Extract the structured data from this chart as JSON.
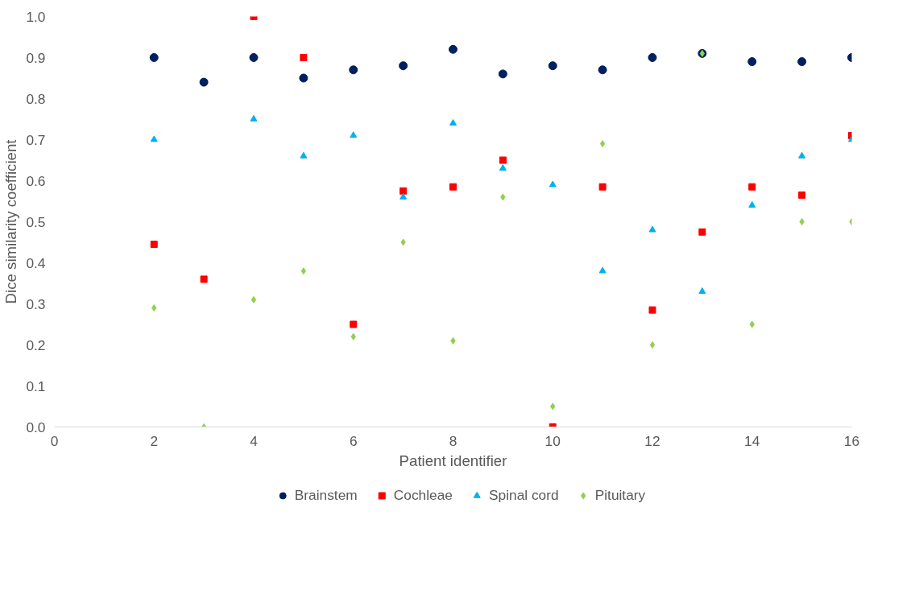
{
  "chart_data": {
    "type": "scatter",
    "xlabel": "Patient identifier",
    "ylabel": "Dice similarity coefficient",
    "xlim": [
      0,
      16
    ],
    "xticks": [
      0,
      2,
      4,
      6,
      8,
      10,
      12,
      14,
      16
    ],
    "ylim": [
      0,
      1
    ],
    "yticks": [
      {
        "value": 0,
        "label": "0.0"
      },
      {
        "value": 0.1,
        "label": "0.1"
      },
      {
        "value": 0.2,
        "label": "0.2"
      },
      {
        "value": 0.3,
        "label": "0.3"
      },
      {
        "value": 0.4,
        "label": "0.4"
      },
      {
        "value": 0.5,
        "label": "0.5"
      },
      {
        "value": 0.6,
        "label": "0.6"
      },
      {
        "value": 0.7,
        "label": "0.7"
      },
      {
        "value": 0.8,
        "label": "0.8"
      },
      {
        "value": 0.9,
        "label": "0.9"
      },
      {
        "value": 1,
        "label": "1.0"
      }
    ],
    "grid": false,
    "legend": "bottom",
    "series": [
      {
        "name": "Brainstem",
        "color": "#002060",
        "marker": "circle",
        "x": [
          2,
          3,
          4,
          5,
          6,
          7,
          8,
          9,
          10,
          11,
          12,
          13,
          14,
          15,
          16
        ],
        "values": [
          0.9,
          0.84,
          0.9,
          0.85,
          0.87,
          0.88,
          0.92,
          0.86,
          0.88,
          0.87,
          0.9,
          0.91,
          0.89,
          0.89,
          0.9
        ]
      },
      {
        "name": "Cochleae",
        "color": "#ff0000",
        "marker": "square",
        "x": [
          2,
          3,
          4,
          5,
          6,
          7,
          8,
          9,
          10,
          11,
          12,
          13,
          14,
          15,
          16
        ],
        "values": [
          0.445,
          0.36,
          1.0,
          0.9,
          0.25,
          0.575,
          0.585,
          0.65,
          0.0,
          0.585,
          0.285,
          0.475,
          0.585,
          0.565,
          0.71
        ]
      },
      {
        "name": "Spinal cord",
        "color": "#00b0f0",
        "marker": "triangle",
        "x": [
          2,
          4,
          5,
          6,
          7,
          8,
          9,
          10,
          11,
          12,
          13,
          14,
          15,
          16
        ],
        "values": [
          0.7,
          0.75,
          0.66,
          0.71,
          0.56,
          0.74,
          0.63,
          0.59,
          0.38,
          0.48,
          0.33,
          0.54,
          0.66,
          0.7
        ]
      },
      {
        "name": "Pituitary",
        "color": "#92d050",
        "marker": "diamond",
        "x": [
          2,
          3,
          4,
          5,
          6,
          7,
          8,
          9,
          10,
          11,
          12,
          13,
          14,
          15,
          16
        ],
        "values": [
          0.29,
          0.0,
          0.31,
          0.38,
          0.22,
          0.45,
          0.21,
          0.56,
          0.05,
          0.69,
          0.2,
          0.91,
          0.25,
          0.5,
          0.5
        ]
      }
    ]
  }
}
